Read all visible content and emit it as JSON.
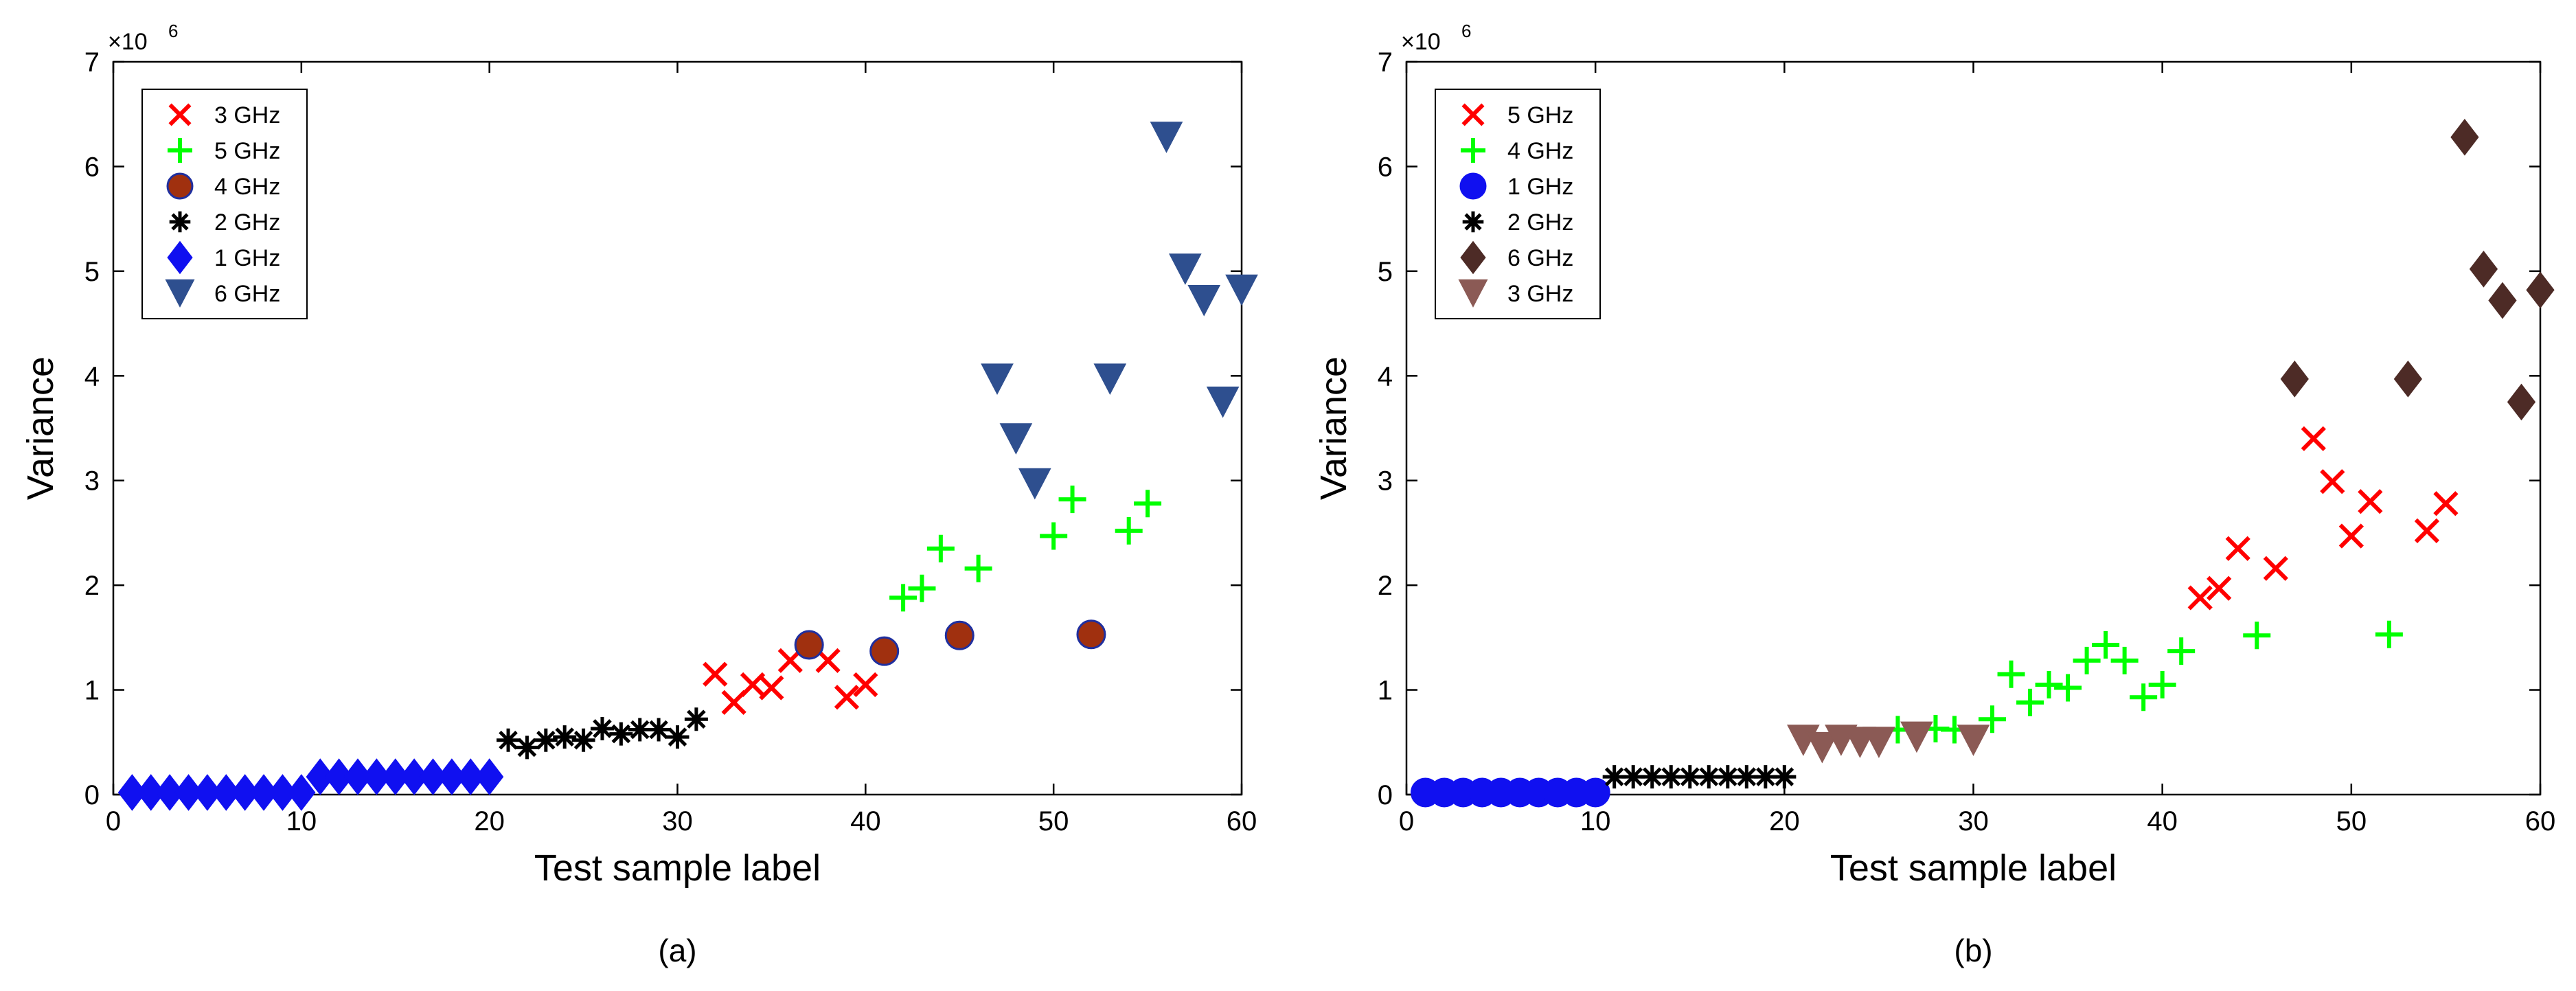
{
  "chart_data": [
    {
      "type": "scatter",
      "panel_label": "(a)",
      "xlabel": "Test sample label",
      "ylabel": "Variance",
      "y_exponent_label": "×10",
      "y_exponent": "6",
      "xlim": [
        0,
        60
      ],
      "ylim": [
        0,
        7
      ],
      "xticks": [
        "0",
        "10",
        "20",
        "30",
        "40",
        "50",
        "60"
      ],
      "yticks": [
        "0",
        "1",
        "2",
        "3",
        "4",
        "5",
        "6",
        "7"
      ],
      "legend_position": "top-left",
      "series": [
        {
          "name": "3 GHz",
          "marker": "x",
          "color": "#ff0000",
          "x": [
            32,
            33,
            34,
            35,
            36,
            38,
            39,
            40
          ],
          "y": [
            1.15,
            0.88,
            1.05,
            1.02,
            1.28,
            1.28,
            0.93,
            1.05
          ]
        },
        {
          "name": "5 GHz",
          "marker": "plus",
          "color": "#00ff00",
          "x": [
            42,
            43,
            44,
            46,
            50,
            51,
            54,
            55
          ],
          "y": [
            1.88,
            1.97,
            2.35,
            2.16,
            2.47,
            2.82,
            2.52,
            2.78
          ]
        },
        {
          "name": "4 GHz",
          "marker": "circle",
          "color": "#a0300f",
          "edgecolor": "#1f2f9f",
          "x": [
            37,
            41,
            45,
            52
          ],
          "y": [
            1.43,
            1.37,
            1.52,
            1.53
          ]
        },
        {
          "name": "2 GHz",
          "marker": "asterisk",
          "color": "#000000",
          "x": [
            21,
            22,
            23,
            24,
            25,
            26,
            27,
            28,
            29,
            30,
            31
          ],
          "y": [
            0.52,
            0.45,
            0.52,
            0.55,
            0.52,
            0.63,
            0.58,
            0.62,
            0.62,
            0.55,
            0.72
          ]
        },
        {
          "name": "1 GHz",
          "marker": "diamond",
          "color": "#1010f0",
          "x": [
            1,
            2,
            3,
            4,
            5,
            6,
            7,
            8,
            9,
            10,
            11,
            12,
            13,
            14,
            15,
            16,
            17,
            18,
            19,
            20
          ],
          "y": [
            0.02,
            0.02,
            0.02,
            0.02,
            0.02,
            0.02,
            0.02,
            0.02,
            0.02,
            0.02,
            0.17,
            0.17,
            0.17,
            0.17,
            0.17,
            0.17,
            0.17,
            0.17,
            0.17,
            0.17
          ]
        },
        {
          "name": "6 GHz",
          "marker": "triangle-down",
          "color": "#2e4f8f",
          "x": [
            47,
            48,
            49,
            53,
            56,
            57,
            58,
            59,
            60
          ],
          "y": [
            3.97,
            3.4,
            2.97,
            3.97,
            6.28,
            5.02,
            4.72,
            3.75,
            4.82
          ]
        }
      ]
    },
    {
      "type": "scatter",
      "panel_label": "(b)",
      "xlabel": "Test sample label",
      "ylabel": "Variance",
      "y_exponent_label": "×10",
      "y_exponent": "6",
      "xlim": [
        0,
        60
      ],
      "ylim": [
        0,
        7
      ],
      "xticks": [
        "0",
        "10",
        "20",
        "30",
        "40",
        "50",
        "60"
      ],
      "yticks": [
        "0",
        "1",
        "2",
        "3",
        "4",
        "5",
        "6",
        "7"
      ],
      "legend_position": "top-left",
      "series": [
        {
          "name": "5 GHz",
          "marker": "x",
          "color": "#ff0000",
          "x": [
            42,
            43,
            44,
            46,
            48,
            49,
            50,
            51,
            54,
            55
          ],
          "y": [
            1.88,
            1.97,
            2.35,
            2.16,
            3.4,
            2.99,
            2.47,
            2.8,
            2.52,
            2.78
          ]
        },
        {
          "name": "4 GHz",
          "marker": "plus",
          "color": "#00ff00",
          "x": [
            26,
            28,
            29,
            31,
            32,
            33,
            34,
            35,
            36,
            37,
            38,
            39,
            40,
            41,
            45,
            52
          ],
          "y": [
            0.62,
            0.63,
            0.62,
            0.72,
            1.15,
            0.88,
            1.05,
            1.02,
            1.28,
            1.43,
            1.28,
            0.93,
            1.05,
            1.37,
            1.52,
            1.53
          ]
        },
        {
          "name": "1 GHz",
          "marker": "circle",
          "color": "#1010f0",
          "edgecolor": "#1010f0",
          "x": [
            1,
            2,
            3,
            4,
            5,
            6,
            7,
            8,
            9,
            10
          ],
          "y": [
            0.02,
            0.02,
            0.02,
            0.02,
            0.02,
            0.02,
            0.02,
            0.02,
            0.02,
            0.02
          ]
        },
        {
          "name": "2 GHz",
          "marker": "asterisk",
          "color": "#000000",
          "x": [
            11,
            12,
            13,
            14,
            15,
            16,
            17,
            18,
            19,
            20
          ],
          "y": [
            0.17,
            0.17,
            0.17,
            0.17,
            0.17,
            0.17,
            0.17,
            0.17,
            0.17,
            0.17
          ]
        },
        {
          "name": "6 GHz",
          "marker": "diamond",
          "color": "#4d2b26",
          "x": [
            47,
            53,
            56,
            57,
            58,
            59,
            60
          ],
          "y": [
            3.97,
            3.97,
            6.28,
            5.02,
            4.72,
            3.75,
            4.82
          ]
        },
        {
          "name": "3 GHz",
          "marker": "triangle-down",
          "color": "#8b5a55",
          "x": [
            21,
            22,
            23,
            24,
            25,
            27,
            30
          ],
          "y": [
            0.52,
            0.45,
            0.52,
            0.5,
            0.5,
            0.55,
            0.52
          ]
        }
      ]
    }
  ]
}
